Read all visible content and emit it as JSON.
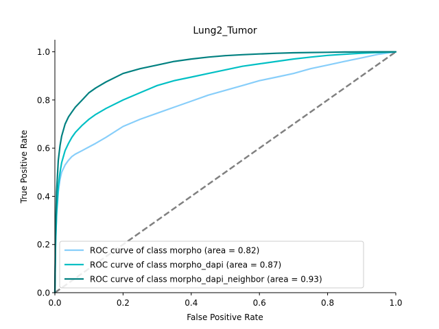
{
  "chart_data": {
    "type": "line",
    "title": "Lung2_Tumor",
    "xlabel": "False Positive Rate",
    "ylabel": "True Positive Rate",
    "xlim": [
      0.0,
      1.0
    ],
    "ylim": [
      0.0,
      1.05
    ],
    "xticks": [
      "0.0",
      "0.2",
      "0.4",
      "0.6",
      "0.8",
      "1.0"
    ],
    "yticks": [
      "0.0",
      "0.2",
      "0.4",
      "0.6",
      "0.8",
      "1.0"
    ],
    "grid": false,
    "legend_position": "lower-right",
    "series": [
      {
        "name": "ROC curve of class morpho (area = 0.82)",
        "color": "#87cefa",
        "x": [
          0,
          0.002,
          0.005,
          0.01,
          0.015,
          0.02,
          0.03,
          0.04,
          0.05,
          0.06,
          0.08,
          0.1,
          0.12,
          0.15,
          0.2,
          0.25,
          0.3,
          0.35,
          0.4,
          0.45,
          0.5,
          0.55,
          0.6,
          0.65,
          0.7,
          0.75,
          0.8,
          0.85,
          0.9,
          0.95,
          1.0
        ],
        "y": [
          0,
          0.2,
          0.32,
          0.42,
          0.47,
          0.5,
          0.53,
          0.55,
          0.565,
          0.575,
          0.59,
          0.605,
          0.62,
          0.645,
          0.69,
          0.72,
          0.745,
          0.77,
          0.795,
          0.82,
          0.84,
          0.86,
          0.88,
          0.895,
          0.91,
          0.93,
          0.945,
          0.96,
          0.975,
          0.99,
          1.0
        ]
      },
      {
        "name": "ROC curve of class morpho_dapi (area = 0.87)",
        "color": "#00bfc4",
        "x": [
          0,
          0.002,
          0.005,
          0.01,
          0.015,
          0.02,
          0.03,
          0.04,
          0.05,
          0.06,
          0.08,
          0.1,
          0.12,
          0.15,
          0.2,
          0.25,
          0.3,
          0.35,
          0.4,
          0.45,
          0.5,
          0.55,
          0.6,
          0.65,
          0.7,
          0.75,
          0.8,
          0.85,
          0.9,
          0.95,
          1.0
        ],
        "y": [
          0,
          0.2,
          0.33,
          0.44,
          0.5,
          0.54,
          0.59,
          0.62,
          0.645,
          0.665,
          0.695,
          0.72,
          0.74,
          0.765,
          0.8,
          0.83,
          0.86,
          0.88,
          0.895,
          0.91,
          0.925,
          0.94,
          0.95,
          0.96,
          0.97,
          0.978,
          0.985,
          0.99,
          0.994,
          0.997,
          1.0
        ]
      },
      {
        "name": "ROC curve of class morpho_dapi_neighbor (area = 0.93)",
        "color": "#008080",
        "x": [
          0,
          0.002,
          0.005,
          0.01,
          0.015,
          0.02,
          0.03,
          0.04,
          0.05,
          0.06,
          0.08,
          0.1,
          0.12,
          0.15,
          0.2,
          0.25,
          0.3,
          0.35,
          0.4,
          0.45,
          0.5,
          0.55,
          0.6,
          0.65,
          0.7,
          0.75,
          0.8,
          0.85,
          0.9,
          0.95,
          1.0
        ],
        "y": [
          0,
          0.25,
          0.42,
          0.55,
          0.61,
          0.65,
          0.7,
          0.73,
          0.75,
          0.77,
          0.8,
          0.83,
          0.85,
          0.875,
          0.91,
          0.93,
          0.945,
          0.96,
          0.97,
          0.978,
          0.984,
          0.988,
          0.991,
          0.994,
          0.996,
          0.997,
          0.998,
          0.999,
          0.9995,
          1.0,
          1.0
        ]
      }
    ],
    "reference_line": {
      "x": [
        0,
        1
      ],
      "y": [
        0,
        1
      ],
      "color": "#808080",
      "style": "dashed"
    }
  }
}
